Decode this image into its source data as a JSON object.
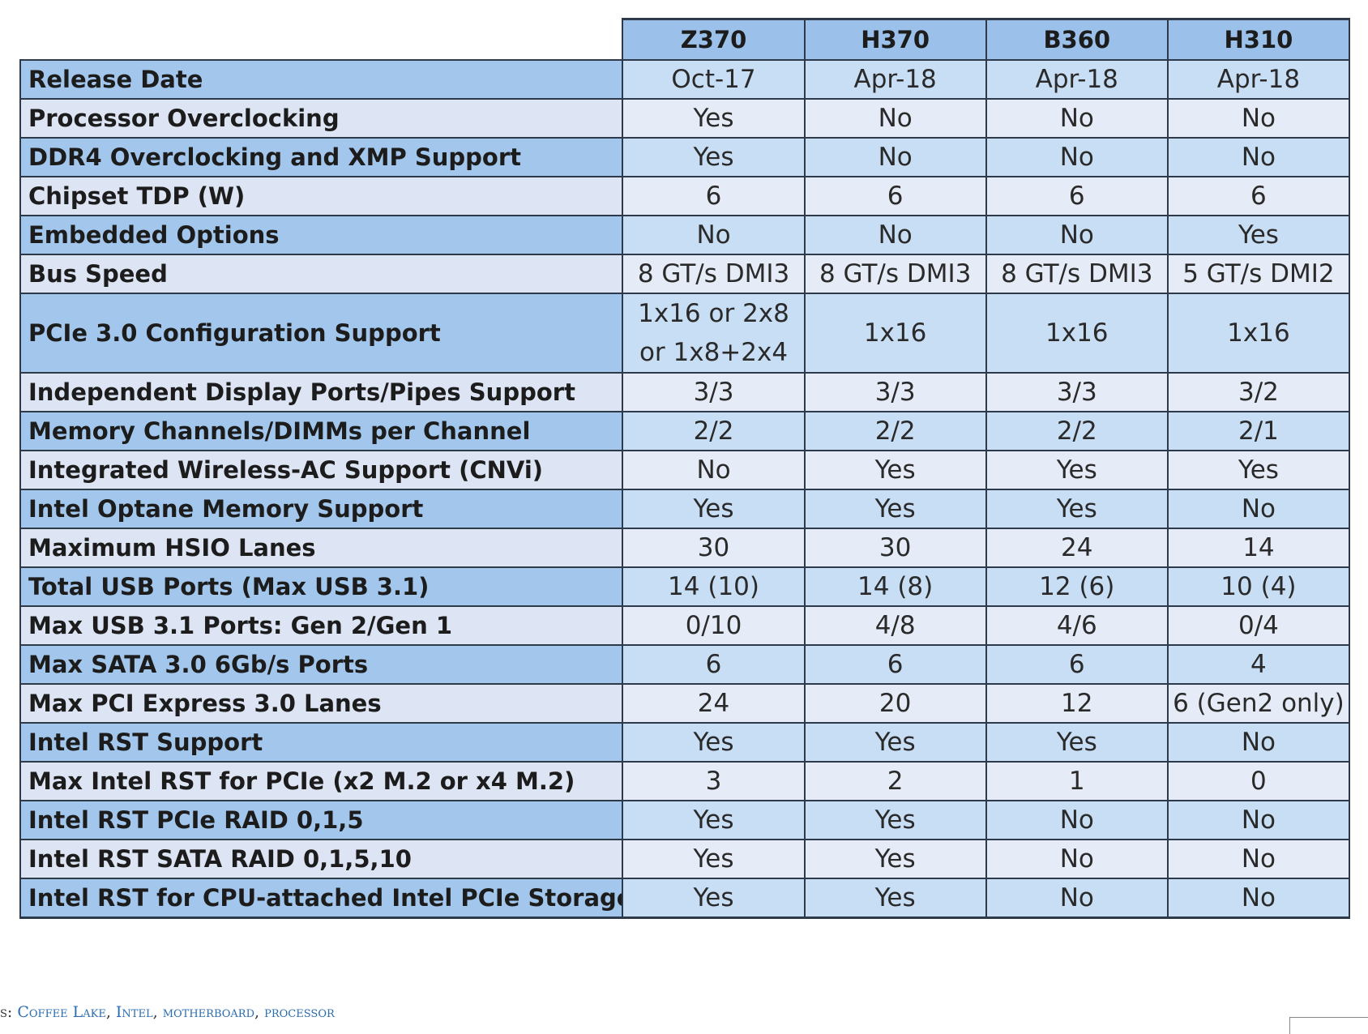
{
  "table": {
    "columns": [
      "Z370",
      "H370",
      "B360",
      "H310"
    ],
    "rows": [
      {
        "label": "Release Date",
        "values": [
          "Oct-17",
          "Apr-18",
          "Apr-18",
          "Apr-18"
        ]
      },
      {
        "label": "Processor Overclocking",
        "values": [
          "Yes",
          "No",
          "No",
          "No"
        ]
      },
      {
        "label": "DDR4 Overclocking and XMP Support",
        "values": [
          "Yes",
          "No",
          "No",
          "No"
        ]
      },
      {
        "label": "Chipset TDP (W)",
        "values": [
          "6",
          "6",
          "6",
          "6"
        ]
      },
      {
        "label": "Embedded Options",
        "values": [
          "No",
          "No",
          "No",
          "Yes"
        ]
      },
      {
        "label": "Bus Speed",
        "values": [
          "8 GT/s DMI3",
          "8 GT/s DMI3",
          "8 GT/s DMI3",
          "5 GT/s DMI2"
        ]
      },
      {
        "label": "PCIe 3.0 Configuration Support",
        "values": [
          "1x16 or 2x8 or 1x8+2x4",
          "1x16",
          "1x16",
          "1x16"
        ]
      },
      {
        "label": "Independent Display Ports/Pipes Support",
        "values": [
          "3/3",
          "3/3",
          "3/3",
          "3/2"
        ]
      },
      {
        "label": "Memory Channels/DIMMs per Channel",
        "values": [
          "2/2",
          "2/2",
          "2/2",
          "2/1"
        ]
      },
      {
        "label": "Integrated Wireless-AC Support (CNVi)",
        "values": [
          "No",
          "Yes",
          "Yes",
          "Yes"
        ]
      },
      {
        "label": "Intel Optane Memory Support",
        "values": [
          "Yes",
          "Yes",
          "Yes",
          "No"
        ]
      },
      {
        "label": "Maximum HSIO Lanes",
        "values": [
          "30",
          "30",
          "24",
          "14"
        ]
      },
      {
        "label": "Total USB Ports (Max USB 3.1)",
        "values": [
          "14 (10)",
          "14 (8)",
          "12 (6)",
          "10 (4)"
        ]
      },
      {
        "label": "Max USB 3.1 Ports: Gen 2/Gen 1",
        "values": [
          "0/10",
          "4/8",
          "4/6",
          "0/4"
        ]
      },
      {
        "label": "Max SATA 3.0 6Gb/s Ports",
        "values": [
          "6",
          "6",
          "6",
          "4"
        ]
      },
      {
        "label": "Max PCI Express 3.0 Lanes",
        "values": [
          "24",
          "20",
          "12",
          "6 (Gen2 only)"
        ]
      },
      {
        "label": "Intel RST Support",
        "values": [
          "Yes",
          "Yes",
          "Yes",
          "No"
        ]
      },
      {
        "label": "Max Intel RST for PCIe (x2 M.2 or x4 M.2)",
        "values": [
          "3",
          "2",
          "1",
          "0"
        ]
      },
      {
        "label": "Intel RST PCIe RAID 0,1,5",
        "values": [
          "Yes",
          "Yes",
          "No",
          "No"
        ]
      },
      {
        "label": "Intel RST SATA RAID 0,1,5,10",
        "values": [
          "Yes",
          "Yes",
          "No",
          "No"
        ]
      },
      {
        "label": "Intel RST for CPU-attached Intel PCIe Storage",
        "values": [
          "Yes",
          "Yes",
          "No",
          "No"
        ]
      }
    ]
  },
  "tags": {
    "prefix": "s: ",
    "items": [
      "Coffee Lake",
      "Intel",
      "motherboard",
      "processor"
    ],
    "separator": ", "
  }
}
